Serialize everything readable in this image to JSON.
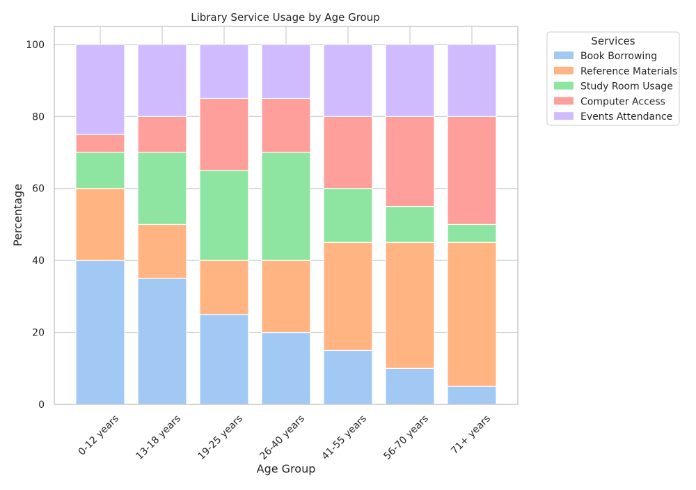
{
  "chart_data": {
    "type": "bar",
    "stacked": true,
    "title": "Library Service Usage by Age Group",
    "xlabel": "Age Group",
    "ylabel": "Percentage",
    "ylim": [
      0,
      105
    ],
    "yticks": [
      0,
      20,
      40,
      60,
      80,
      100
    ],
    "grid": true,
    "legend_title": "Services",
    "legend_position": "outside-upper-right",
    "categories": [
      "0-12 years",
      "13-18 years",
      "19-25 years",
      "26-40 years",
      "41-55 years",
      "56-70 years",
      "71+ years"
    ],
    "series": [
      {
        "name": "Book Borrowing",
        "color": "#a1c9f4",
        "values": [
          40,
          35,
          25,
          20,
          15,
          10,
          5
        ]
      },
      {
        "name": "Reference Materials",
        "color": "#ffb482",
        "values": [
          20,
          15,
          15,
          20,
          30,
          35,
          40
        ]
      },
      {
        "name": "Study Room Usage",
        "color": "#8de5a1",
        "values": [
          10,
          20,
          25,
          30,
          15,
          10,
          5
        ]
      },
      {
        "name": "Computer Access",
        "color": "#ff9f9b",
        "values": [
          5,
          10,
          20,
          15,
          20,
          25,
          30
        ]
      },
      {
        "name": "Events Attendance",
        "color": "#d0bbff",
        "values": [
          25,
          20,
          15,
          15,
          20,
          20,
          20
        ]
      }
    ]
  }
}
